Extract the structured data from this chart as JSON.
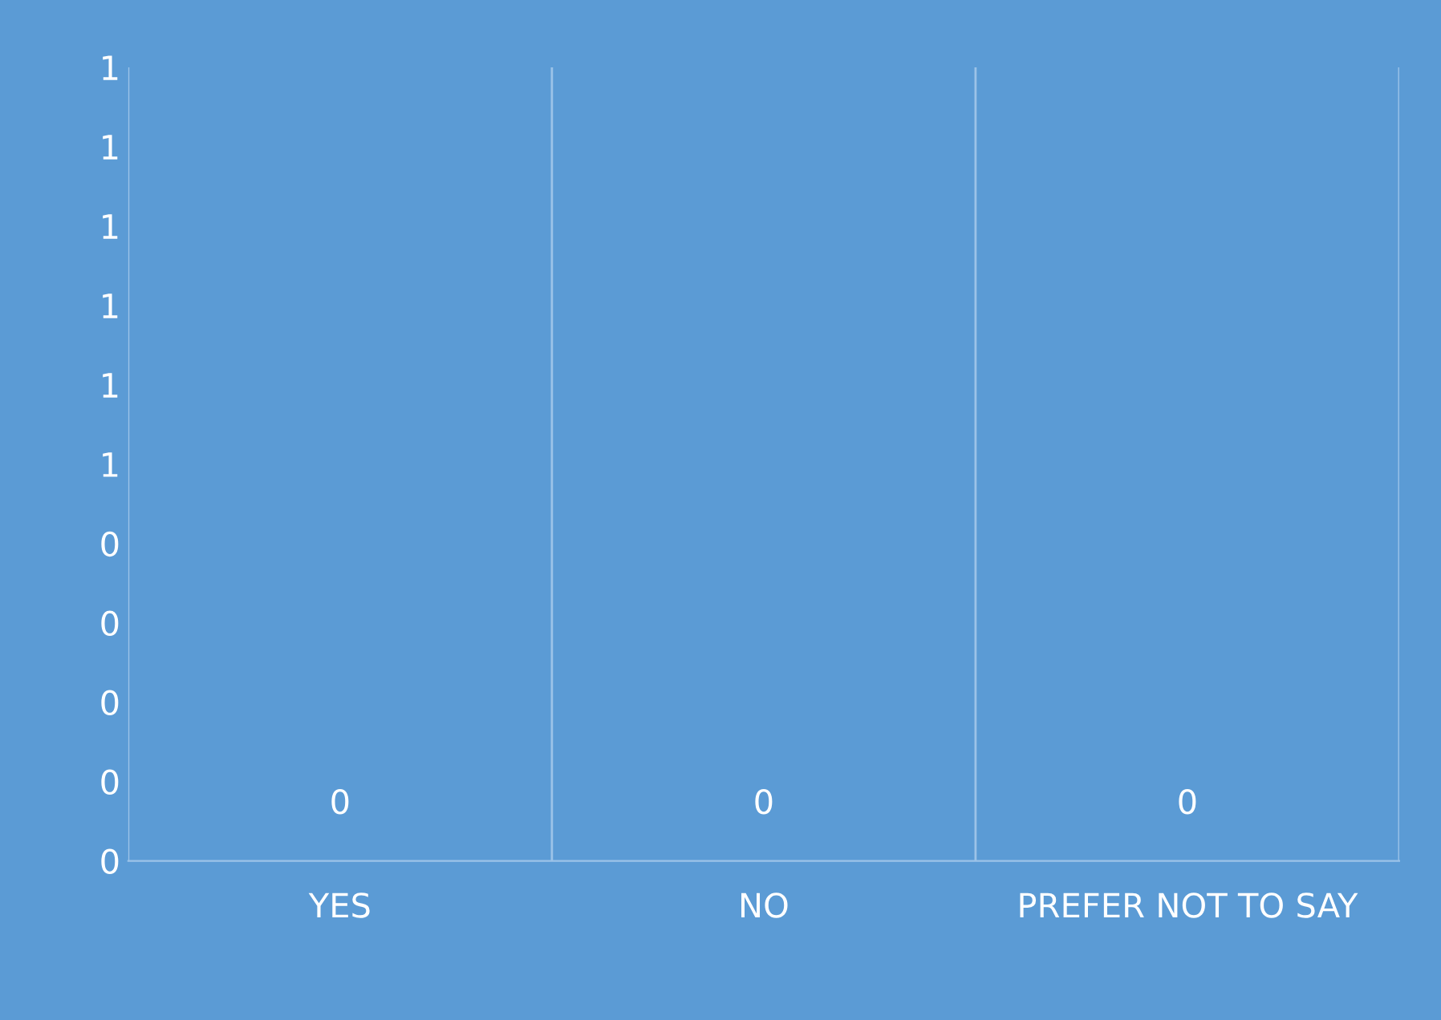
{
  "chart_data": {
    "type": "bar",
    "categories": [
      "YES",
      "NO",
      "PREFER NOT TO SAY"
    ],
    "values": [
      0,
      0,
      0
    ],
    "data_labels": true,
    "ylim": [
      0,
      1
    ],
    "yticks": [
      0,
      {
        "value": 0.1,
        "label": "0"
      },
      {
        "value": 0.2,
        "label": "0"
      },
      {
        "value": 0.3,
        "label": "0"
      },
      {
        "value": 0.4,
        "label": "0"
      },
      {
        "value": 0.5,
        "label": "1"
      },
      {
        "value": 0.6,
        "label": "1"
      },
      {
        "value": 0.7,
        "label": "1"
      },
      {
        "value": 0.8,
        "label": "1"
      },
      {
        "value": 0.9,
        "label": "1"
      },
      1
    ],
    "grid": "x"
  }
}
